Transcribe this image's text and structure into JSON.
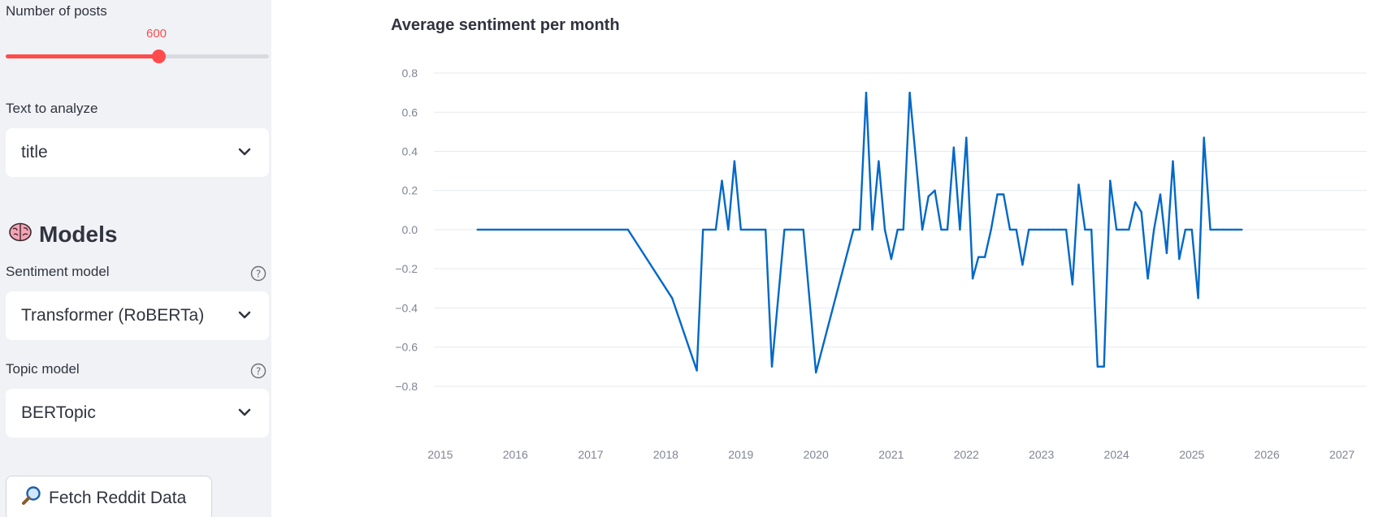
{
  "sidebar": {
    "posts_label": "Number of posts",
    "posts_value": "600",
    "posts_fraction": 0.58,
    "text_label": "Text to analyze",
    "text_value": "title",
    "models_heading": "Models",
    "sentiment_label": "Sentiment model",
    "sentiment_value": "Transformer (RoBERTa)",
    "topic_label": "Topic model",
    "topic_value": "BERTopic",
    "fetch_label": "Fetch Reddit Data",
    "accent_color": "#ff4b4b"
  },
  "icons": {
    "models": "brain-icon",
    "fetch": "magnifier-icon",
    "help": "question-circle-icon",
    "select": "chevron-down-icon"
  },
  "chart_data": {
    "type": "line",
    "title": "Average sentiment per month",
    "xlabel": "",
    "ylabel": "",
    "color": "#0068c9",
    "grid": true,
    "ylim": [
      -0.95,
      0.85
    ],
    "xlim": [
      "2014-12-01",
      "2027-05-01"
    ],
    "y_ticks": [
      "0.8",
      "0.6",
      "0.4",
      "0.2",
      "0.0",
      "−0.2",
      "−0.4",
      "−0.6",
      "−0.8"
    ],
    "y_tick_values": [
      0.8,
      0.6,
      0.4,
      0.2,
      0.0,
      -0.2,
      -0.4,
      -0.6,
      -0.8
    ],
    "x_ticks": [
      "2015",
      "2016",
      "2017",
      "2018",
      "2019",
      "2020",
      "2021",
      "2022",
      "2023",
      "2024",
      "2025",
      "2026",
      "2027"
    ],
    "x": [
      "2015-07",
      "2017-07",
      "2018-02",
      "2018-06",
      "2018-07",
      "2018-09",
      "2018-10",
      "2018-11",
      "2018-12",
      "2019-01",
      "2019-05",
      "2019-06",
      "2019-08",
      "2019-09",
      "2019-11",
      "2020-01",
      "2020-07",
      "2020-08",
      "2020-09",
      "2020-10",
      "2020-11",
      "2020-12",
      "2021-01",
      "2021-02",
      "2021-03",
      "2021-04",
      "2021-06",
      "2021-07",
      "2021-08",
      "2021-09",
      "2021-10",
      "2021-11",
      "2021-12",
      "2022-01",
      "2022-02",
      "2022-03",
      "2022-04",
      "2022-05",
      "2022-06",
      "2022-07",
      "2022-08",
      "2022-09",
      "2022-10",
      "2022-11",
      "2022-12",
      "2023-02",
      "2023-03",
      "2023-04",
      "2023-05",
      "2023-06",
      "2023-07",
      "2023-08",
      "2023-09",
      "2023-10",
      "2023-11",
      "2023-12",
      "2024-01",
      "2024-02",
      "2024-03",
      "2024-04",
      "2024-05",
      "2024-06",
      "2024-07",
      "2024-08",
      "2024-09",
      "2024-10",
      "2024-11",
      "2024-12",
      "2025-01",
      "2025-02",
      "2025-03",
      "2025-04",
      "2025-05",
      "2025-06",
      "2025-07",
      "2025-08",
      "2025-09"
    ],
    "y": [
      0.0,
      0.0,
      -0.35,
      -0.72,
      0.0,
      0.0,
      0.25,
      0.0,
      0.35,
      0.0,
      0.0,
      -0.7,
      0.0,
      0.0,
      0.0,
      -0.73,
      0.0,
      0.0,
      0.7,
      0.0,
      0.35,
      0.0,
      -0.15,
      0.0,
      0.0,
      0.7,
      0.0,
      0.17,
      0.2,
      0.0,
      0.0,
      0.42,
      0.0,
      0.47,
      -0.25,
      -0.14,
      -0.14,
      0.0,
      0.18,
      0.18,
      0.0,
      0.0,
      -0.18,
      0.0,
      0.0,
      0.0,
      0.0,
      0.0,
      0.0,
      -0.28,
      0.23,
      0.0,
      0.0,
      -0.7,
      -0.7,
      0.25,
      0.0,
      0.0,
      0.0,
      0.14,
      0.09,
      -0.25,
      0.0,
      0.18,
      -0.12,
      0.35,
      -0.15,
      0.0,
      0.0,
      -0.35,
      0.47,
      0.0,
      0.0,
      0.0,
      0.0,
      0.0,
      0.0
    ]
  }
}
